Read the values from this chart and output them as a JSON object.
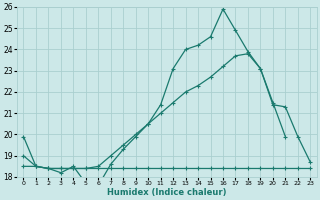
{
  "xlabel": "Humidex (Indice chaleur)",
  "xlim": [
    -0.5,
    23.5
  ],
  "ylim": [
    18,
    26
  ],
  "yticks": [
    18,
    19,
    20,
    21,
    22,
    23,
    24,
    25,
    26
  ],
  "xticks": [
    0,
    1,
    2,
    3,
    4,
    5,
    6,
    7,
    8,
    9,
    10,
    11,
    12,
    13,
    14,
    15,
    16,
    17,
    18,
    19,
    20,
    21,
    22,
    23
  ],
  "bg_color": "#cce8e8",
  "grid_color": "#aacfcf",
  "line_color": "#1a7a6e",
  "lines": [
    {
      "x": [
        0,
        1,
        2,
        3,
        4,
        5,
        6,
        7,
        8,
        9,
        10,
        11,
        12,
        13,
        14,
        15,
        16,
        17,
        18,
        19,
        20,
        21
      ],
      "y": [
        19.9,
        18.5,
        18.4,
        18.2,
        18.5,
        17.7,
        17.6,
        18.6,
        19.3,
        19.9,
        20.5,
        21.4,
        23.1,
        24.0,
        24.2,
        24.6,
        25.9,
        24.9,
        23.9,
        23.1,
        21.5,
        19.9
      ]
    },
    {
      "x": [
        0,
        1,
        2,
        3,
        4,
        5,
        6,
        7,
        8,
        9,
        10,
        11,
        12,
        13,
        14,
        15,
        16,
        17,
        18,
        19,
        20,
        21,
        22,
        23
      ],
      "y": [
        19.0,
        18.5,
        18.4,
        18.4,
        18.4,
        18.4,
        18.5,
        19.0,
        19.5,
        20.0,
        20.5,
        21.0,
        21.5,
        22.0,
        22.3,
        22.7,
        23.2,
        23.7,
        23.8,
        23.1,
        21.4,
        21.3,
        19.9,
        18.7
      ]
    },
    {
      "x": [
        0,
        1,
        2,
        3,
        4,
        5,
        6,
        7,
        8,
        9,
        10,
        11,
        12,
        13,
        14,
        15,
        16,
        17,
        18,
        19,
        20,
        21,
        22,
        23
      ],
      "y": [
        18.5,
        18.5,
        18.4,
        18.4,
        18.4,
        18.4,
        18.4,
        18.4,
        18.4,
        18.4,
        18.4,
        18.4,
        18.4,
        18.4,
        18.4,
        18.4,
        18.4,
        18.4,
        18.4,
        18.4,
        18.4,
        18.4,
        18.4,
        18.4
      ]
    }
  ]
}
